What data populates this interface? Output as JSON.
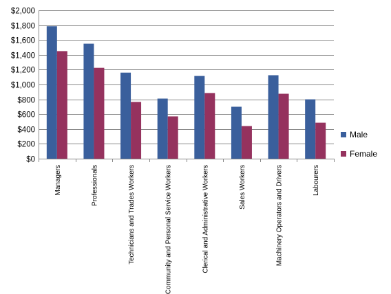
{
  "chart_data": {
    "type": "bar",
    "title": "",
    "xlabel": "",
    "ylabel": "",
    "ylim": [
      0,
      2000
    ],
    "y_ticks": [
      0,
      200,
      400,
      600,
      800,
      1000,
      1200,
      1400,
      1600,
      1800,
      2000
    ],
    "y_tick_labels": [
      "$0",
      "$200",
      "$400",
      "$600",
      "$800",
      "$1,000",
      "$1,200",
      "$1,400",
      "$1,600",
      "$1,800",
      "$2,000"
    ],
    "grid": true,
    "legend_position": "right",
    "categories": [
      "Managers",
      "Professionals",
      "Technicians and Trades Workers",
      "Community and Personal Service Workers",
      "Clerical and Administrative Workers",
      "Sales Workers",
      "Machinery Operators and Drivers",
      "Labourers"
    ],
    "series": [
      {
        "name": "Male",
        "color": "#3A5F9C",
        "values": [
          1785,
          1550,
          1160,
          810,
          1115,
          700,
          1125,
          800
        ]
      },
      {
        "name": "Female",
        "color": "#95325E",
        "values": [
          1450,
          1225,
          765,
          570,
          885,
          440,
          875,
          485
        ]
      }
    ]
  }
}
